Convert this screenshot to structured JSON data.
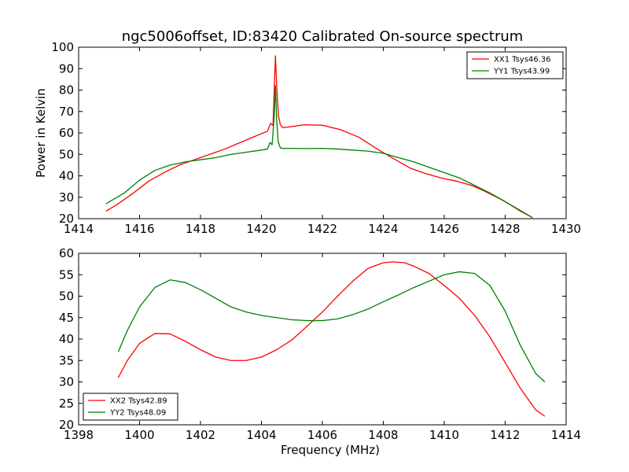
{
  "title": "ngc5006offset, ID:83420 Calibrated On-source spectrum",
  "colors": {
    "red": "#ff0000",
    "green": "#008000",
    "axis": "#000000",
    "background": "#ffffff"
  },
  "chart_data": [
    {
      "type": "line",
      "ylabel": "Power in Kelvin",
      "xlabel": "",
      "xlim": [
        1414,
        1430
      ],
      "ylim": [
        20,
        100
      ],
      "xticks": [
        "1414",
        "1416",
        "1418",
        "1420",
        "1422",
        "1424",
        "1426",
        "1428",
        "1430"
      ],
      "yticks": [
        "20",
        "30",
        "40",
        "50",
        "60",
        "70",
        "80",
        "90",
        "100"
      ],
      "legend_position": "top-right",
      "grid": false,
      "series": [
        {
          "name": "XX1 Tsys46.36",
          "color": "#ff0000",
          "x": [
            1414.9,
            1415.3,
            1415.8,
            1416.3,
            1416.8,
            1417.3,
            1417.8,
            1418.3,
            1418.8,
            1419.3,
            1419.8,
            1420.2,
            1420.3,
            1420.38,
            1420.42,
            1420.46,
            1420.5,
            1420.56,
            1420.62,
            1420.7,
            1420.9,
            1421.4,
            1422.0,
            1422.6,
            1423.2,
            1423.8,
            1424.4,
            1424.9,
            1425.4,
            1425.9,
            1426.4,
            1426.9,
            1427.3,
            1427.8,
            1428.3,
            1428.9
          ],
          "y": [
            23.5,
            27,
            32,
            37.5,
            41.5,
            45,
            47.5,
            50,
            52.5,
            55.5,
            58.5,
            60.8,
            64.5,
            63.5,
            80,
            96,
            82,
            68,
            64,
            62.5,
            62.8,
            63.8,
            63.6,
            61.5,
            58,
            52.5,
            47.5,
            43.5,
            41,
            39,
            37.5,
            35.5,
            33,
            29.5,
            25.5,
            20.5
          ]
        },
        {
          "name": "YY1 Tsys43.99",
          "color": "#008000",
          "x": [
            1414.9,
            1415.5,
            1416.0,
            1416.5,
            1417.0,
            1417.5,
            1418.0,
            1418.5,
            1419.0,
            1419.5,
            1420.0,
            1420.2,
            1420.28,
            1420.35,
            1420.42,
            1420.46,
            1420.5,
            1420.55,
            1420.62,
            1420.7,
            1421.0,
            1421.5,
            1422.0,
            1422.5,
            1423.0,
            1423.5,
            1424.0,
            1424.5,
            1425.0,
            1425.5,
            1426.0,
            1426.5,
            1427.0,
            1427.5,
            1428.0,
            1428.5,
            1428.9
          ],
          "y": [
            27,
            32,
            38,
            42.5,
            45,
            46.5,
            47.5,
            48.5,
            50,
            51,
            52,
            52.5,
            55.5,
            54.5,
            68,
            82,
            66,
            56,
            53,
            52.8,
            52.8,
            52.7,
            52.8,
            52.5,
            52,
            51.5,
            50.5,
            48.5,
            46.5,
            44,
            41.5,
            39,
            35.5,
            32,
            28,
            23.5,
            20.5
          ]
        }
      ]
    },
    {
      "type": "line",
      "xlabel": "Frequency (MHz)",
      "ylabel": "",
      "xlim": [
        1398,
        1414
      ],
      "ylim": [
        20,
        60
      ],
      "xticks": [
        "1398",
        "1400",
        "1402",
        "1404",
        "1406",
        "1408",
        "1410",
        "1412",
        "1414"
      ],
      "yticks": [
        "20",
        "25",
        "30",
        "35",
        "40",
        "45",
        "50",
        "55",
        "60"
      ],
      "legend_position": "bottom-left",
      "grid": false,
      "series": [
        {
          "name": "XX2 Tsys42.89",
          "color": "#ff0000",
          "x": [
            1399.3,
            1399.6,
            1400.0,
            1400.5,
            1401.0,
            1401.5,
            1402.0,
            1402.5,
            1403.0,
            1403.5,
            1404.0,
            1404.5,
            1405.0,
            1405.5,
            1406.0,
            1406.5,
            1407.0,
            1407.5,
            1408.0,
            1408.3,
            1408.7,
            1409.0,
            1409.5,
            1410.0,
            1410.5,
            1411.0,
            1411.5,
            1412.0,
            1412.5,
            1413.0,
            1413.3
          ],
          "y": [
            31,
            35,
            39,
            41.3,
            41.2,
            39.5,
            37.5,
            35.8,
            35,
            35,
            35.8,
            37.5,
            39.8,
            43,
            46.3,
            50,
            53.5,
            56.5,
            57.8,
            58,
            57.8,
            57,
            55.3,
            52.5,
            49.5,
            45.5,
            40.5,
            34.5,
            28.5,
            23.5,
            22
          ]
        },
        {
          "name": "YY2 Tsys48.09",
          "color": "#008000",
          "x": [
            1399.3,
            1399.6,
            1400.0,
            1400.5,
            1401.0,
            1401.5,
            1402.0,
            1402.5,
            1403.0,
            1403.5,
            1404.0,
            1404.5,
            1405.0,
            1405.5,
            1406.0,
            1406.5,
            1407.0,
            1407.5,
            1408.0,
            1408.5,
            1409.0,
            1409.5,
            1410.0,
            1410.5,
            1411.0,
            1411.5,
            1412.0,
            1412.5,
            1413.0,
            1413.3
          ],
          "y": [
            37,
            42,
            47.5,
            52,
            53.8,
            53.2,
            51.5,
            49.5,
            47.5,
            46.3,
            45.5,
            45,
            44.5,
            44.3,
            44.3,
            44.7,
            45.7,
            47,
            48.7,
            50.3,
            52,
            53.5,
            55,
            55.7,
            55.3,
            52.5,
            46.5,
            38.5,
            32,
            30
          ]
        }
      ]
    }
  ]
}
